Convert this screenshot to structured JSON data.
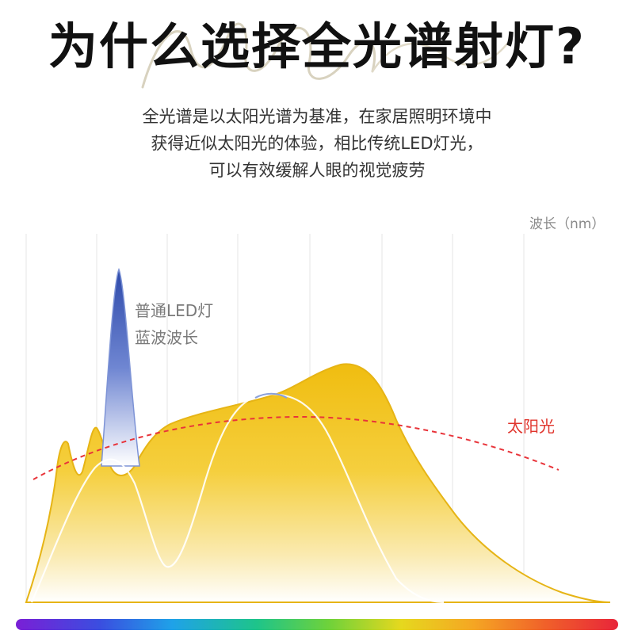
{
  "header": {
    "title": "为什么选择全光谱射灯?",
    "description_lines": [
      "全光谱是以太阳光谱为基准，在家居照明环境中",
      "获得近似太阳光的体验，相比传统LED灯光，",
      "可以有效缓解人眼的视觉疲劳"
    ]
  },
  "chart": {
    "unit_label": "波长（nm）",
    "led_label_line1": "普通LED灯",
    "led_label_line2": "蓝波波长",
    "sun_label": "太阳光",
    "colors": {
      "fullspectrum_fill": "#f2c21b",
      "fullspectrum_stroke": "#e6b415",
      "led_blue": "#3a56b8",
      "sunlight_dashed": "#e8343a",
      "grid": "#e4e4e4"
    },
    "gridline_count": 8
  },
  "colors": {
    "title": "#111111",
    "description": "#333333",
    "rainbow_bar": [
      "#7a1fd6",
      "#3a4ee0",
      "#1fa2e8",
      "#1ec48a",
      "#6fd23a",
      "#e6d81e",
      "#f5a623",
      "#f0602a",
      "#e8253a"
    ]
  }
}
